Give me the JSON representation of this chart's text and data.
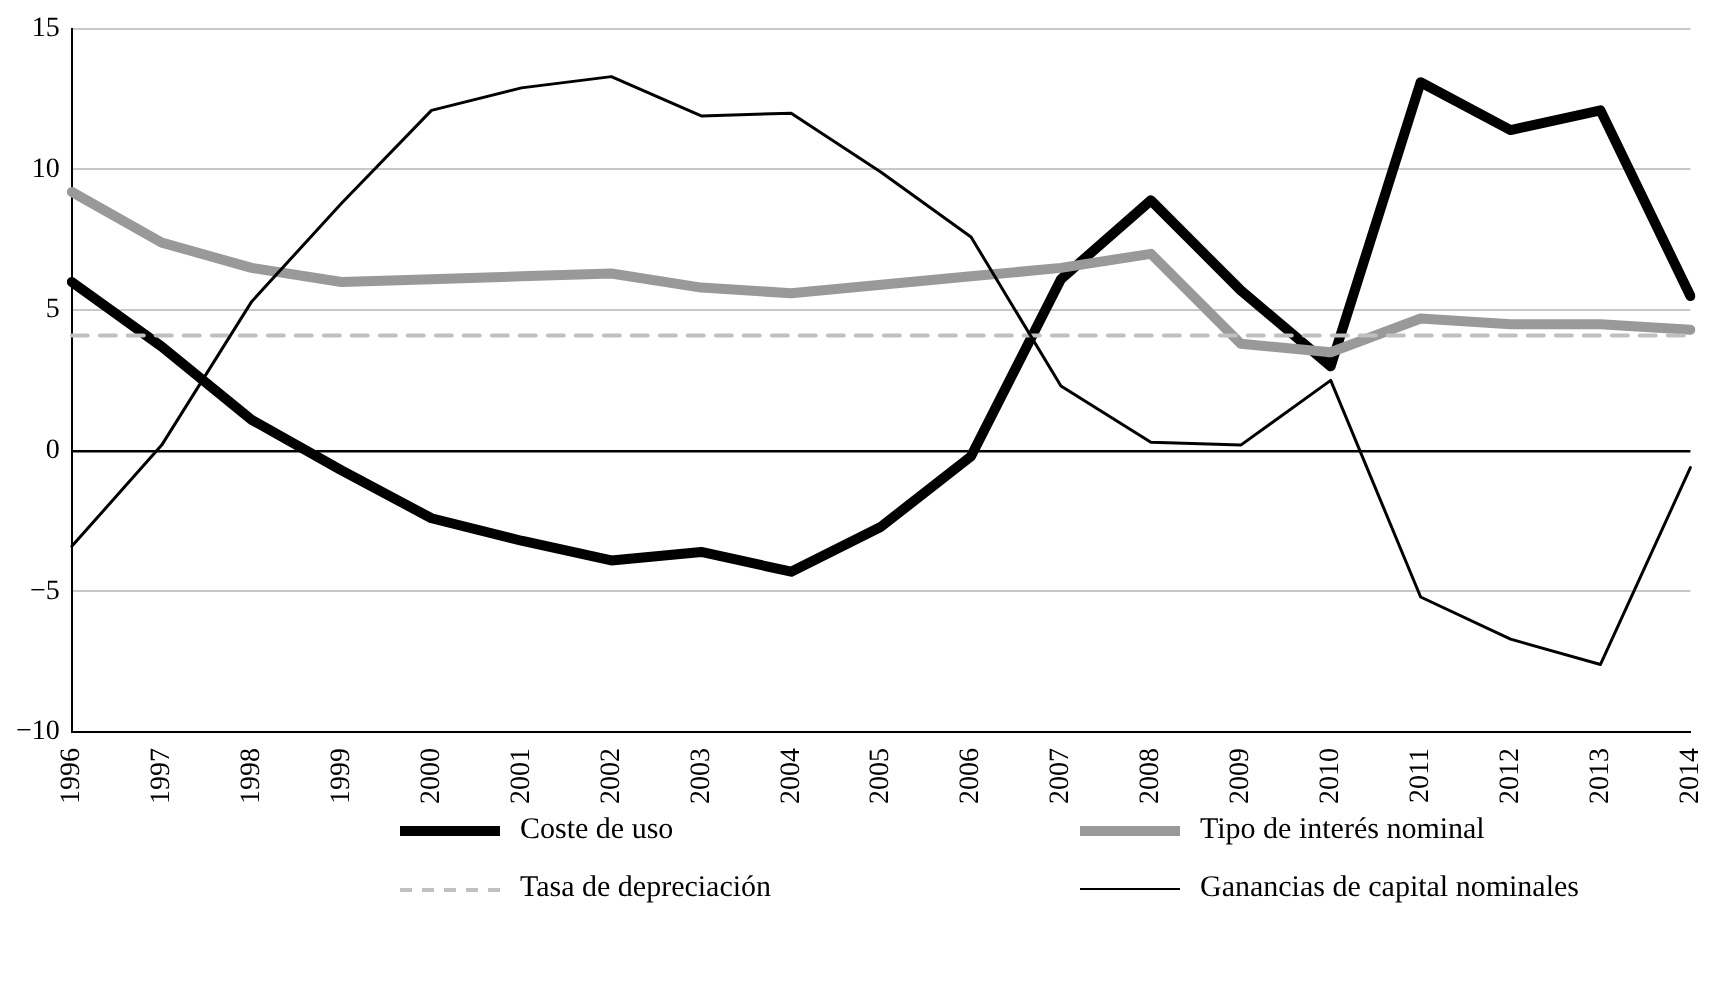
{
  "chart_data": {
    "type": "line",
    "categories": [
      "1996",
      "1997",
      "1998",
      "1999",
      "2000",
      "2001",
      "2002",
      "2003",
      "2004",
      "2005",
      "2006",
      "2007",
      "2008",
      "2009",
      "2010",
      "2011",
      "2012",
      "2013",
      "2014"
    ],
    "series": [
      {
        "name": "Coste de uso",
        "color": "#000000",
        "values": [
          6.0,
          3.7,
          1.1,
          -0.7,
          -2.4,
          -3.2,
          -3.9,
          -3.6,
          -4.3,
          -2.7,
          -0.2,
          6.1,
          8.9,
          5.7,
          3.0,
          13.1,
          11.4,
          12.1,
          5.5
        ]
      },
      {
        "name": "Tipo de interés nominal",
        "color": "#999999",
        "values": [
          9.2,
          7.4,
          6.5,
          6.0,
          6.1,
          6.2,
          6.3,
          5.8,
          5.6,
          5.9,
          6.2,
          6.5,
          7.0,
          3.8,
          3.5,
          4.7,
          4.5,
          4.5,
          4.3
        ]
      },
      {
        "name": "Tasa de depreciación",
        "color": "#c0c0c0",
        "line_style": "dashed",
        "values": [
          4.1,
          4.1,
          4.1,
          4.1,
          4.1,
          4.1,
          4.1,
          4.1,
          4.1,
          4.1,
          4.1,
          4.1,
          4.1,
          4.1,
          4.1,
          4.1,
          4.1,
          4.1,
          4.1
        ]
      },
      {
        "name": "Ganancias de capital nominales",
        "color": "#000000",
        "values": [
          -3.4,
          0.2,
          5.3,
          8.8,
          12.1,
          12.9,
          13.3,
          11.9,
          12.0,
          9.9,
          7.6,
          2.3,
          0.3,
          0.2,
          2.5,
          -5.2,
          -6.7,
          -7.6,
          -0.6
        ]
      }
    ],
    "ylim": [
      -10,
      15
    ],
    "yticks": [
      {
        "value": -10,
        "label": "−10"
      },
      {
        "value": -5,
        "label": "−5"
      },
      0,
      5,
      10,
      15
    ],
    "grid": "y",
    "legend": "bottom",
    "marker": "none",
    "line_style": "solid"
  }
}
